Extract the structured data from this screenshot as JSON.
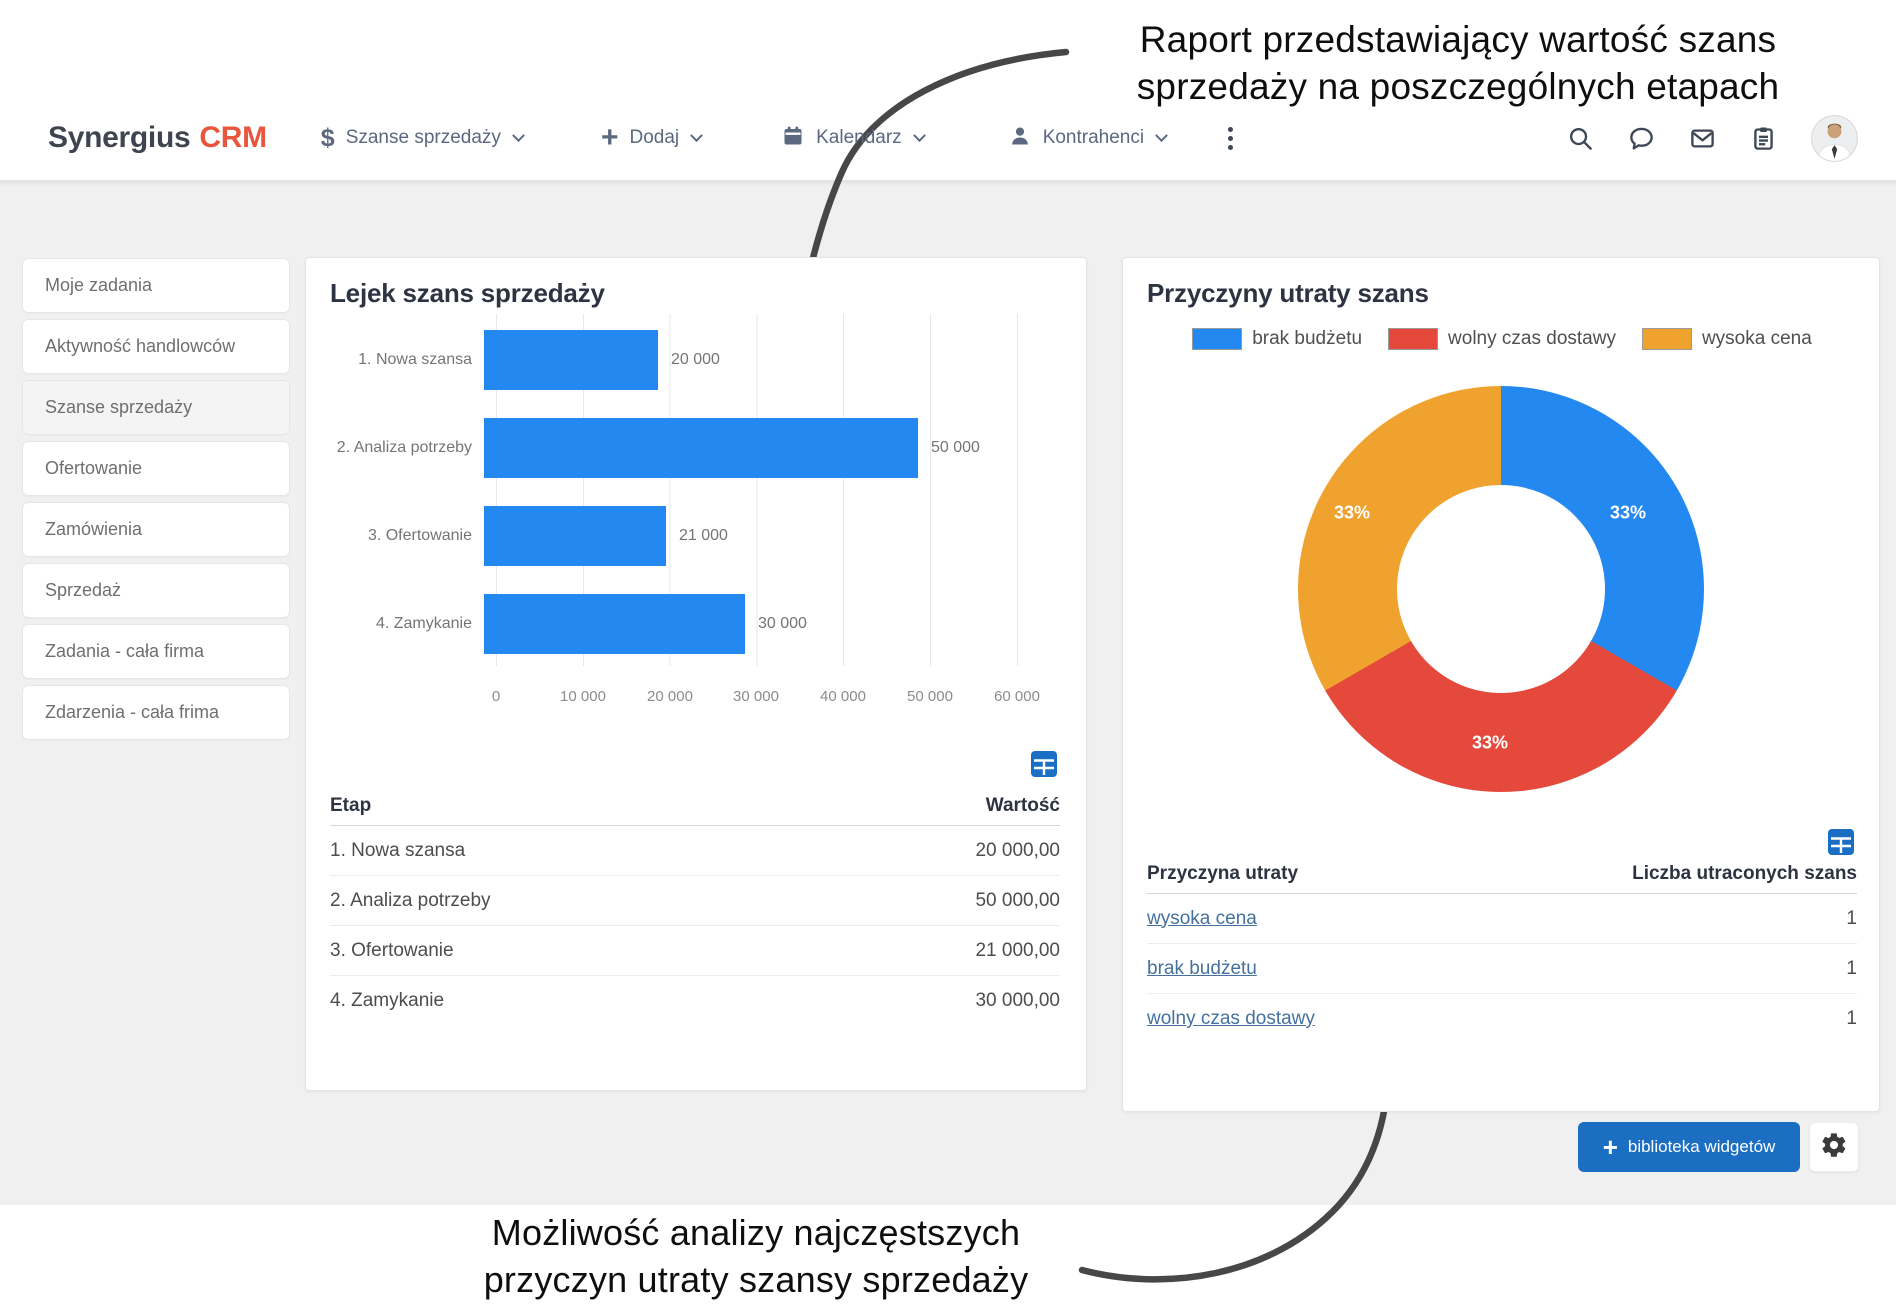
{
  "annotations": {
    "top_line1": "Raport przedstawiający wartość szans",
    "top_line2": "sprzedaży na poszczególnych etapach",
    "bottom_line1": "Możliwość analizy najczęstszych",
    "bottom_line2": "przyczyn utraty szansy sprzedaży"
  },
  "header": {
    "logo_part1": "Synergius",
    "logo_part2": "CRM",
    "nav": [
      {
        "label": "Szanse sprzedaży",
        "icon": "dollar-icon"
      },
      {
        "label": "Dodaj",
        "icon": "plus-icon"
      },
      {
        "label": "Kalendarz",
        "icon": "calendar-icon"
      },
      {
        "label": "Kontrahenci",
        "icon": "person-icon"
      }
    ],
    "icons": [
      "search-icon",
      "chat-icon",
      "mail-icon",
      "clipboard-icon",
      "avatar"
    ]
  },
  "sidebar": {
    "items": [
      {
        "label": "Moje zadania",
        "active": false
      },
      {
        "label": "Aktywność handlowców",
        "active": false
      },
      {
        "label": "Szanse sprzedaży",
        "active": true
      },
      {
        "label": "Ofertowanie",
        "active": false
      },
      {
        "label": "Zamówienia",
        "active": false
      },
      {
        "label": "Sprzedaż",
        "active": false
      },
      {
        "label": "Zadania - cała firma",
        "active": false
      },
      {
        "label": "Zdarzenia - cała frima",
        "active": false
      }
    ]
  },
  "funnel_card": {
    "title": "Lejek szans sprzedaży",
    "table": {
      "col1": "Etap",
      "col2": "Wartość",
      "rows": [
        {
          "etap": "1. Nowa szansa",
          "wartosc": "20 000,00"
        },
        {
          "etap": "2. Analiza potrzeby",
          "wartosc": "50 000,00"
        },
        {
          "etap": "3. Ofertowanie",
          "wartosc": "21 000,00"
        },
        {
          "etap": "4. Zamykanie",
          "wartosc": "30 000,00"
        }
      ]
    }
  },
  "loss_card": {
    "title": "Przyczyny utraty szans",
    "table": {
      "col1": "Przyczyna utraty",
      "col2": "Liczba utraconych szans",
      "rows": [
        {
          "przyczyna": "wysoka cena",
          "liczba": "1"
        },
        {
          "przyczyna": "brak budżetu",
          "liczba": "1"
        },
        {
          "przyczyna": "wolny czas dostawy",
          "liczba": "1"
        }
      ]
    }
  },
  "footer": {
    "widgets_button_label": "biblioteka widgetów"
  },
  "colors": {
    "bar_blue": "#2389f0",
    "pie_red": "#e4493b",
    "pie_orange": "#f0a22e",
    "button_blue": "#1b6ec2",
    "logo_accent": "#e8563d",
    "link_blue": "#44719f"
  },
  "chart_data": [
    {
      "type": "bar",
      "orientation": "horizontal",
      "title": "Lejek szans sprzedaży",
      "categories": [
        "1. Nowa szansa",
        "2. Analiza potrzeby",
        "3. Ofertowanie",
        "4. Zamykanie"
      ],
      "values": [
        20000,
        50000,
        21000,
        30000
      ],
      "value_labels": [
        "20 000",
        "50 000",
        "21 000",
        "30 000"
      ],
      "xlim": [
        0,
        60000
      ],
      "x_ticks": [
        "0",
        "10 000",
        "20 000",
        "30 000",
        "40 000",
        "50 000",
        "60 000"
      ],
      "bar_color": "#2389f0",
      "grid": true,
      "legend_position": "none"
    },
    {
      "type": "pie",
      "donut": true,
      "title": "Przyczyny utraty szans",
      "labels": [
        "brak budżetu",
        "wolny czas dostawy",
        "wysoka cena"
      ],
      "values": [
        33.33,
        33.33,
        33.34
      ],
      "slice_labels": [
        "33%",
        "33%",
        "33%"
      ],
      "colors": [
        "#2389f0",
        "#e4493b",
        "#f0a22e"
      ],
      "legend_position": "top"
    }
  ]
}
